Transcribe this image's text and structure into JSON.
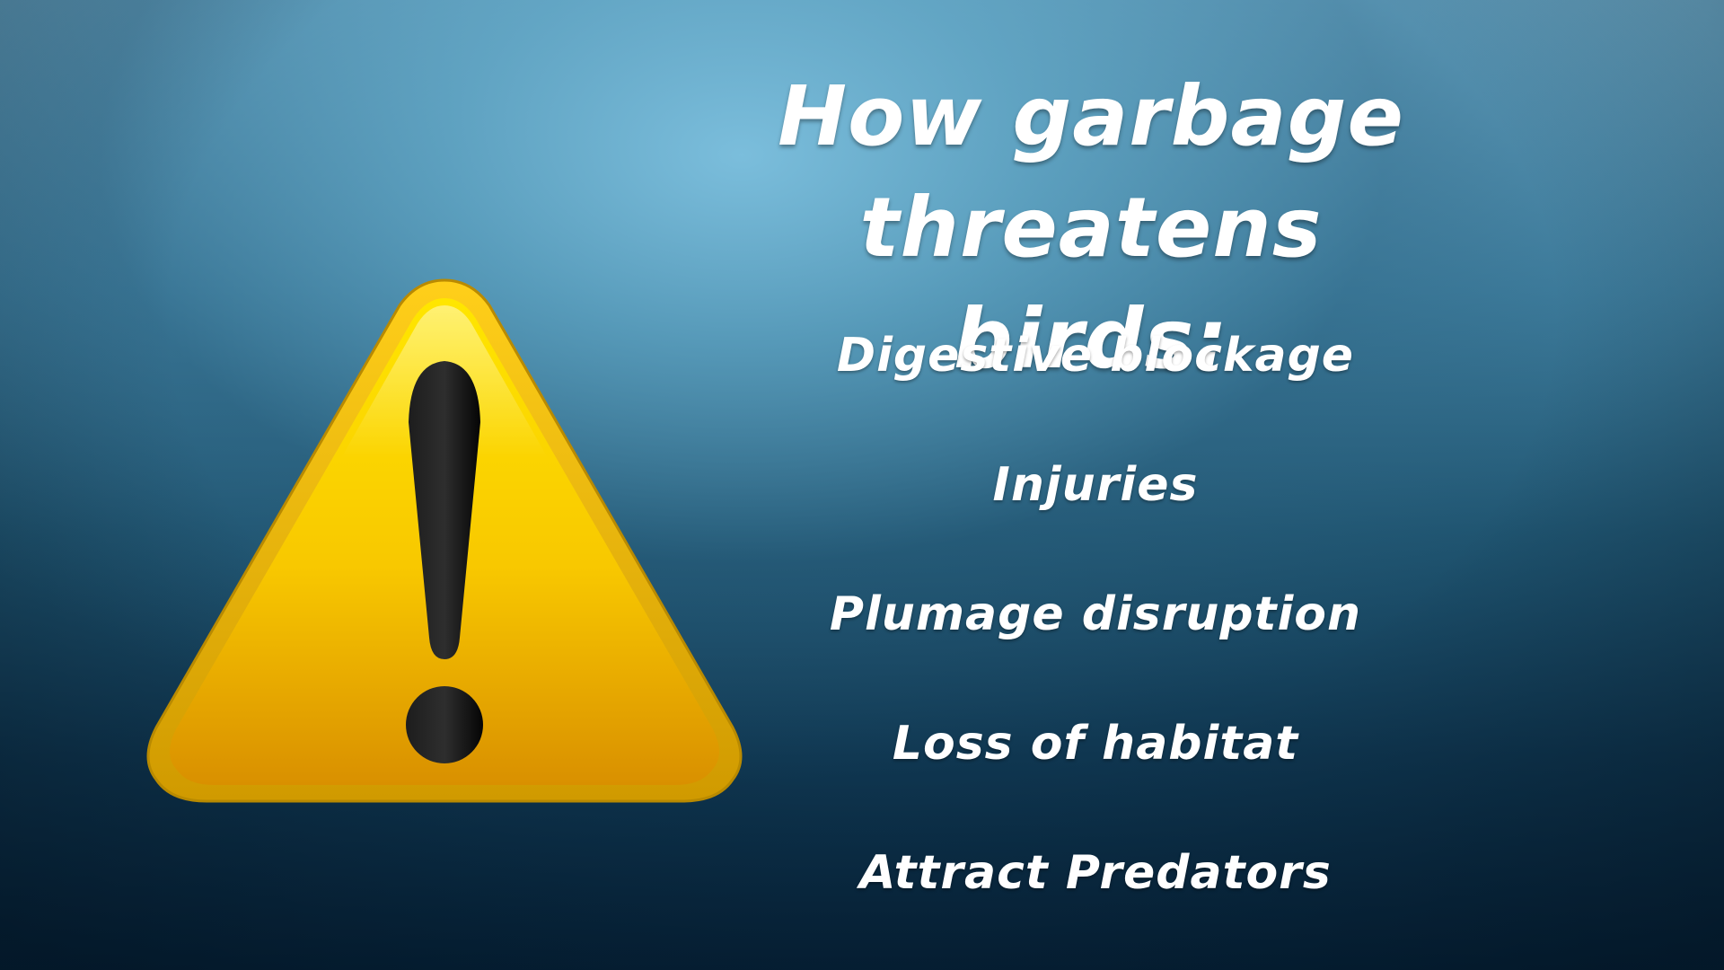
{
  "slide": {
    "title_line1": "How garbage threatens",
    "title_line2": "birds:",
    "threats": [
      "Digestive blockage",
      "Injuries",
      "Plumage disruption",
      "Loss of habitat",
      "Attract Predators"
    ],
    "icon": "warning-exclamation-triangle-icon",
    "colors": {
      "background_top": "#6ba8c6",
      "background_bottom": "#06233a",
      "text": "#ffffff",
      "sign_yellow": "#ffd200",
      "sign_border": "#e0a800",
      "exclamation": "#111111"
    }
  }
}
